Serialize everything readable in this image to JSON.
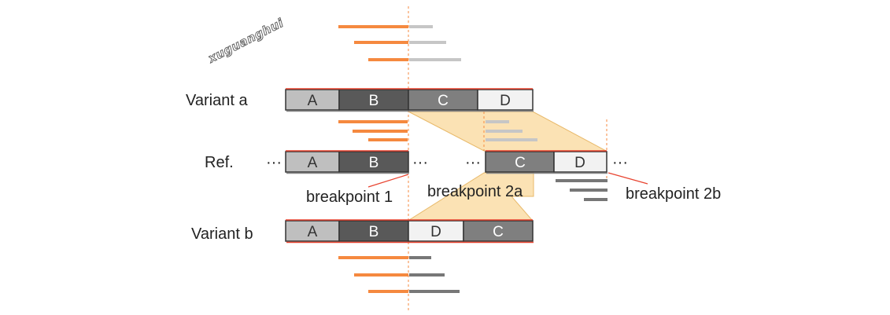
{
  "watermark": "xuguanghui",
  "rows": {
    "variant_a": "Variant a",
    "ref": "Ref.",
    "variant_b": "Variant b"
  },
  "segments": {
    "variant_a": [
      "A",
      "B",
      "C",
      "D"
    ],
    "ref": [
      "A",
      "B",
      "C",
      "D"
    ],
    "variant_b": [
      "A",
      "B",
      "D",
      "C"
    ]
  },
  "ellipsis": "···",
  "breakpoints": {
    "bp1": "breakpoint 1",
    "bp2a": "breakpoint 2a",
    "bp2b": "breakpoint 2b"
  },
  "colors": {
    "read_orange": "#f5893f",
    "read_light_gray": "#c6c6c6",
    "read_dark_gray": "#777777",
    "seg_A": "#bfbfbf",
    "seg_B": "#595959",
    "seg_C": "#7f7f7f",
    "seg_D": "#f2f2f2",
    "highlight": "#fbe2b4",
    "red_line": "#e8432f"
  }
}
